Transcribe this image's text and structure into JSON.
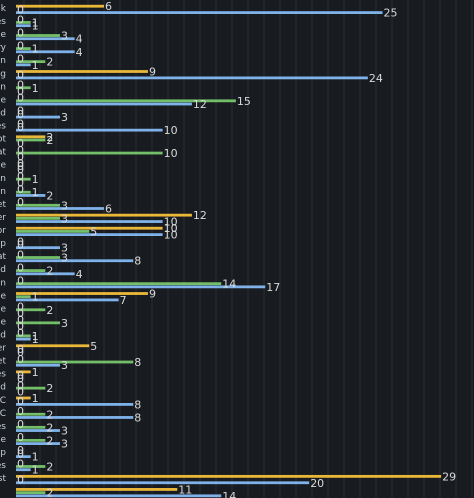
{
  "chart_data": {
    "type": "bar",
    "orientation": "horizontal",
    "grid": true,
    "categories": [
      "lk",
      "es",
      "e",
      "ry",
      "an",
      "g",
      "on",
      "e",
      "d",
      "es",
      "ot",
      "at",
      "e",
      "in",
      "n",
      "et",
      "er",
      "or",
      "ip",
      "at",
      "d",
      "in",
      "e",
      "e",
      "e",
      "d",
      "er",
      "et",
      "es",
      "d",
      "C",
      "C",
      "es",
      "e",
      "ip",
      "es",
      "st",
      ""
    ],
    "series": [
      {
        "color": "#eab839",
        "values": [
          6,
          0,
          0,
          0,
          0,
          9,
          0,
          0,
          0,
          0,
          2,
          0,
          0,
          0,
          0,
          0,
          12,
          10,
          0,
          0,
          0,
          0,
          9,
          0,
          0,
          0,
          5,
          0,
          1,
          0,
          1,
          0,
          0,
          0,
          0,
          0,
          29,
          11
        ]
      },
      {
        "color": "#73bf69",
        "values": [
          0,
          1,
          3,
          1,
          2,
          0,
          1,
          15,
          0,
          0,
          2,
          10,
          0,
          1,
          1,
          3,
          3,
          5,
          0,
          3,
          2,
          14,
          1,
          2,
          3,
          1,
          0,
          8,
          0,
          2,
          0,
          2,
          2,
          2,
          0,
          2,
          0,
          2
        ]
      },
      {
        "color": "#7eb2e8",
        "values": [
          25,
          1,
          4,
          4,
          1,
          24,
          0,
          12,
          3,
          10,
          0,
          0,
          0,
          0,
          2,
          6,
          10,
          10,
          3,
          8,
          4,
          17,
          7,
          0,
          0,
          1,
          0,
          3,
          0,
          0,
          8,
          8,
          3,
          3,
          1,
          1,
          20,
          14
        ]
      }
    ],
    "xlim": [
      0,
      30
    ]
  }
}
